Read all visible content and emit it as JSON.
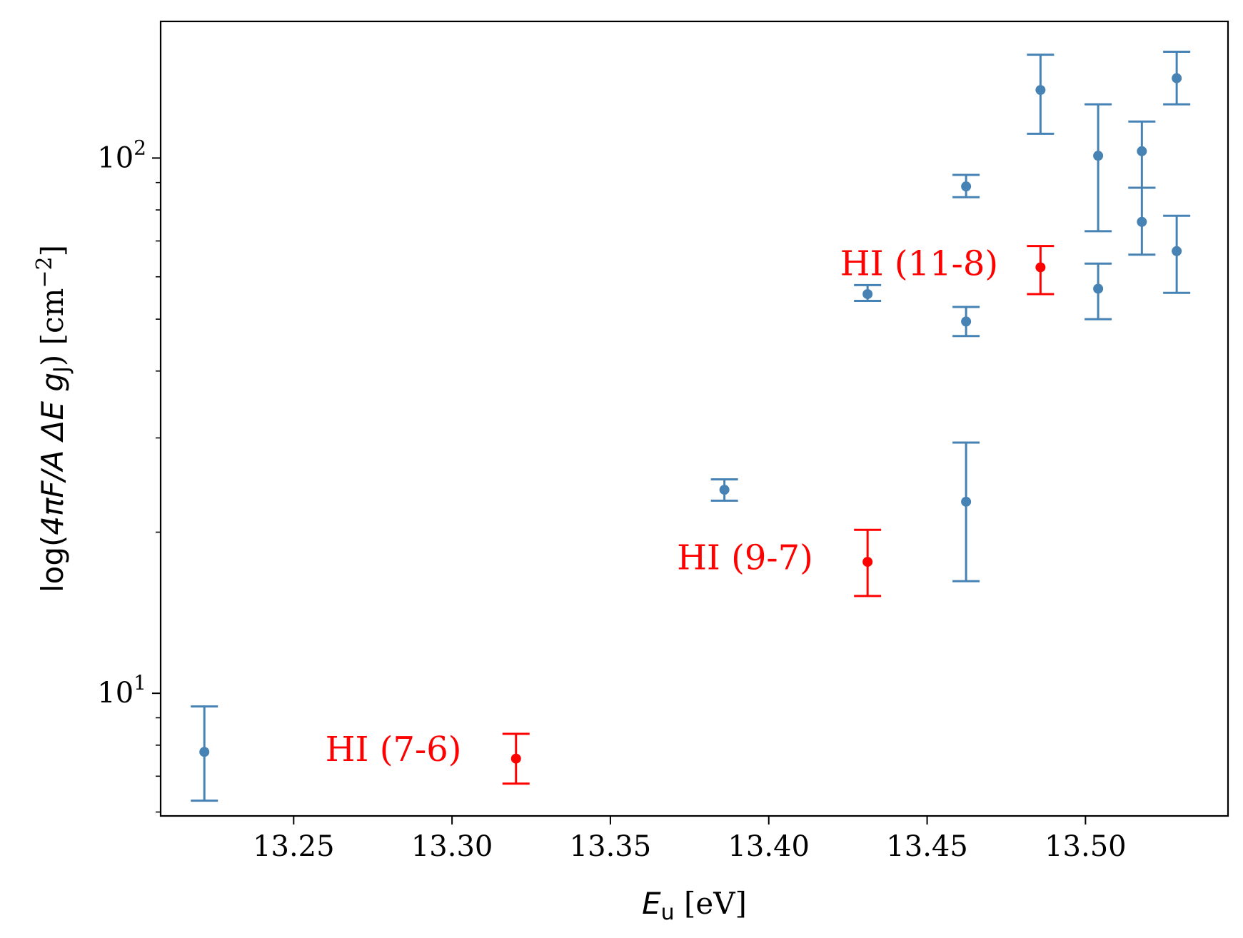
{
  "chart_data": {
    "type": "scatter",
    "title": "",
    "xlabel": {
      "symbol": "E",
      "subscript": "u",
      "unit": " [eV]"
    },
    "ylabel": {
      "prefix": "log(",
      "formula": "4πF/A ΔE g",
      "subscript": "J",
      "suffix": ") [cm",
      "exponent": "−2",
      "close": "]"
    },
    "xlim": [
      13.208,
      13.545
    ],
    "ylim": [
      5.9,
      180
    ],
    "yscale": "log",
    "grid": false,
    "x_ticks": [
      13.25,
      13.3,
      13.35,
      13.4,
      13.45,
      13.5
    ],
    "x_tick_labels": [
      "13.25",
      "13.30",
      "13.35",
      "13.40",
      "13.45",
      "13.50"
    ],
    "y_ticks": [
      10,
      100
    ],
    "y_tick_labels": [
      {
        "base": "10",
        "exp": "1"
      },
      {
        "base": "10",
        "exp": "2"
      }
    ],
    "y_minor_ticks": [
      6,
      7,
      8,
      9,
      20,
      30,
      40,
      50,
      60,
      70,
      80,
      90
    ],
    "colors": {
      "primary": "#4682b4",
      "highlight": "#ff0000"
    },
    "series": [
      {
        "color": "#4682b4",
        "points": [
          {
            "x": 13.2218,
            "y": 7.77,
            "ylow": 6.3,
            "yhigh": 9.45
          },
          {
            "x": 13.386,
            "y": 24.0,
            "ylow": 22.9,
            "yhigh": 25.1
          },
          {
            "x": 13.4312,
            "y": 55.7,
            "ylow": 54.1,
            "yhigh": 57.9
          },
          {
            "x": 13.4623,
            "y": 88.5,
            "ylow": 84.5,
            "yhigh": 93.0
          },
          {
            "x": 13.4623,
            "y": 49.5,
            "ylow": 46.5,
            "yhigh": 52.7
          },
          {
            "x": 13.4623,
            "y": 22.8,
            "ylow": 16.2,
            "yhigh": 29.4
          },
          {
            "x": 13.4858,
            "y": 134.0,
            "ylow": 111.0,
            "yhigh": 156.0
          },
          {
            "x": 13.504,
            "y": 101.0,
            "ylow": 73.0,
            "yhigh": 126.0
          },
          {
            "x": 13.504,
            "y": 57.0,
            "ylow": 50.0,
            "yhigh": 63.5
          },
          {
            "x": 13.5178,
            "y": 103.0,
            "ylow": 88.0,
            "yhigh": 117.0
          },
          {
            "x": 13.5178,
            "y": 76.0,
            "ylow": 66.0,
            "yhigh": 88.0
          },
          {
            "x": 13.5288,
            "y": 141.0,
            "ylow": 126.0,
            "yhigh": 158.0
          },
          {
            "x": 13.5288,
            "y": 67.0,
            "ylow": 56.0,
            "yhigh": 78.0
          }
        ]
      },
      {
        "color": "#ff0000",
        "points": [
          {
            "x": 13.3202,
            "y": 7.55,
            "ylow": 6.78,
            "yhigh": 8.4
          },
          {
            "x": 13.4312,
            "y": 17.6,
            "ylow": 15.2,
            "yhigh": 20.2
          },
          {
            "x": 13.4858,
            "y": 62.5,
            "ylow": 55.7,
            "yhigh": 68.5
          }
        ]
      }
    ],
    "annotations": [
      {
        "text": "HI (7-6)",
        "x": 13.2815,
        "y": 7.85,
        "color": "#ff0000"
      },
      {
        "text": "HI (9-7)",
        "x": 13.3925,
        "y": 17.9,
        "color": "#ff0000"
      },
      {
        "text": "HI (11-8)",
        "x": 13.4475,
        "y": 63.5,
        "color": "#ff0000"
      }
    ]
  }
}
